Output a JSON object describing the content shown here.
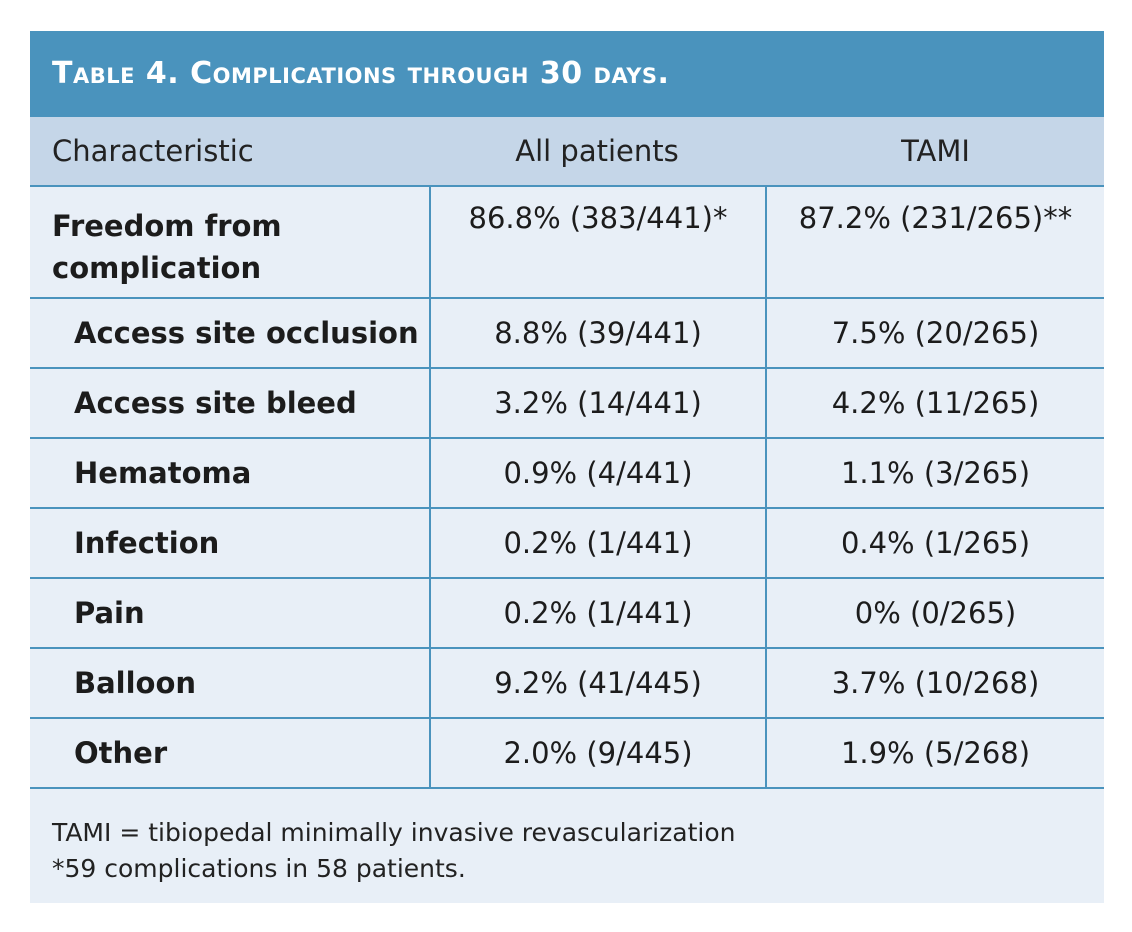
{
  "table": {
    "title": "Table 4.  Complications through 30 days.",
    "headers": {
      "characteristic": "Characteristic",
      "all_patients": "All patients",
      "tami": "TAMI"
    },
    "rows": [
      {
        "label": "Freedom from complication",
        "all": "86.8% (383/441)*",
        "tami": "87.2% (231/265)**"
      },
      {
        "label": "Access site occlusion",
        "all": "8.8% (39/441)",
        "tami": "7.5% (20/265)"
      },
      {
        "label": "Access site bleed",
        "all": "3.2% (14/441)",
        "tami": "4.2% (11/265)"
      },
      {
        "label": "Hematoma",
        "all": "0.9% (4/441)",
        "tami": "1.1% (3/265)"
      },
      {
        "label": "Infection",
        "all": "0.2% (1/441)",
        "tami": "0.4% (1/265)"
      },
      {
        "label": "Pain",
        "all": "0.2% (1/441)",
        "tami": "0% (0/265)"
      },
      {
        "label": "Balloon",
        "all": "9.2% (41/445)",
        "tami": "3.7% (10/268)"
      },
      {
        "label": "Other",
        "all": "2.0% (9/445)",
        "tami": "1.9% (5/268)"
      }
    ],
    "footnotes": [
      "TAMI = tibiopedal minimally invasive revascularization",
      "*59 complications in 58 patients."
    ]
  },
  "colors": {
    "title_bar": "#4a93bd",
    "header_row": "#c5d6e8",
    "body": "#e8eff7",
    "rule": "#4a93bd"
  }
}
